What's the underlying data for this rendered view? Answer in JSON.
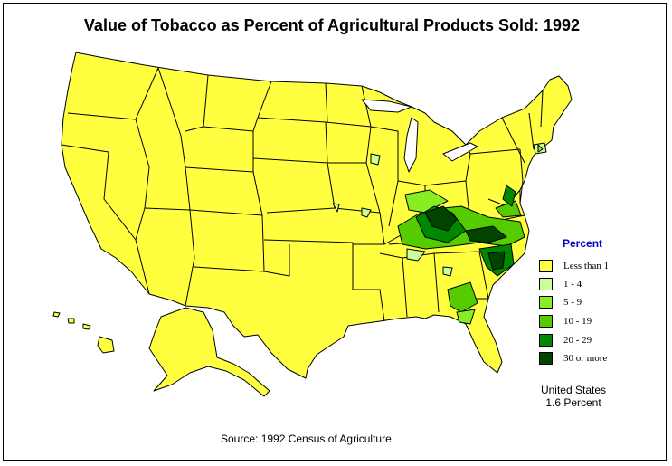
{
  "title": "Value of Tobacco as Percent of Agricultural Products Sold:  1992",
  "legend": {
    "title": "Percent",
    "items": [
      {
        "label": "Less than 1",
        "color": "#ffff40"
      },
      {
        "label": "1  -  4",
        "color": "#ccff99"
      },
      {
        "label": "5  -  9",
        "color": "#88ee22"
      },
      {
        "label": "10  -  19",
        "color": "#55cc00"
      },
      {
        "label": "20  -  29",
        "color": "#008800"
      },
      {
        "label": "30 or more",
        "color": "#004400"
      }
    ]
  },
  "us_note": {
    "line1": "United States",
    "line2": "1.6 Percent"
  },
  "source": "Source:  1992 Census of Agriculture"
}
